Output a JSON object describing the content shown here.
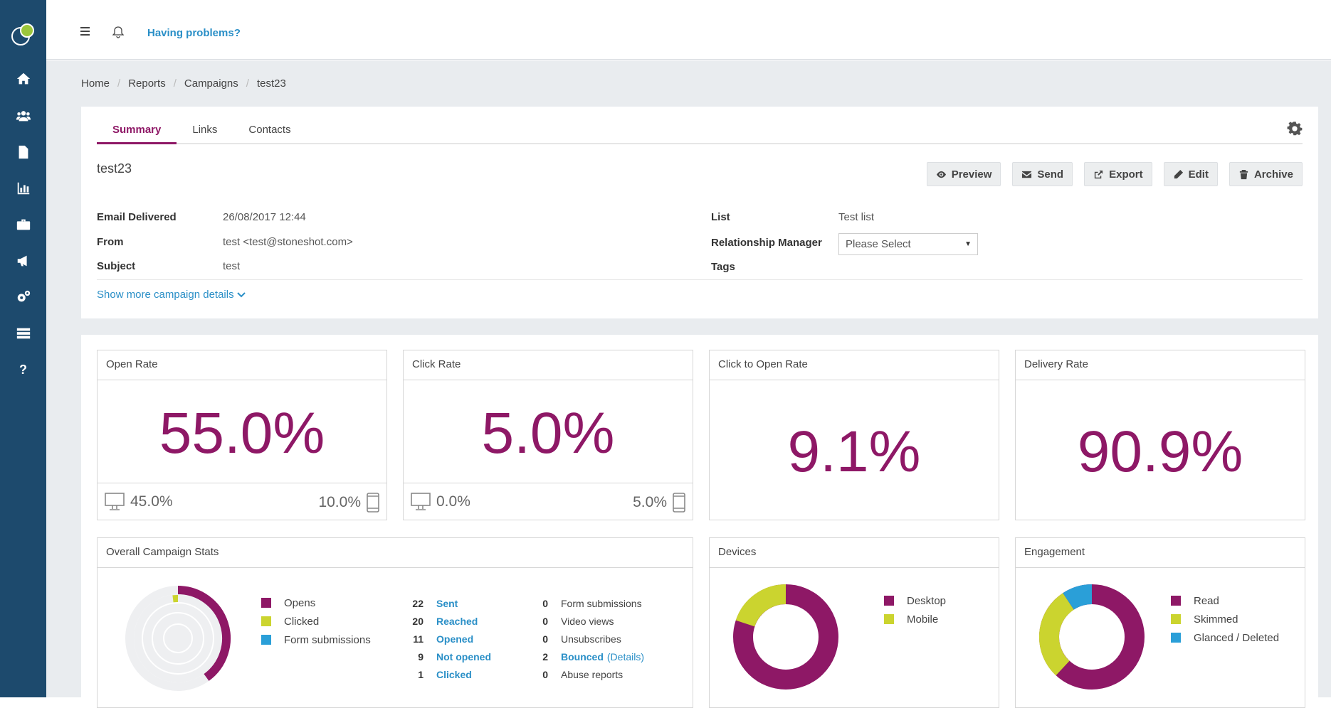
{
  "topbar": {
    "problems_link": "Having problems?"
  },
  "sidebar": {
    "items": [
      {
        "icon": "home-icon"
      },
      {
        "icon": "users-icon"
      },
      {
        "icon": "document-icon"
      },
      {
        "icon": "bar-chart-icon"
      },
      {
        "icon": "briefcase-icon"
      },
      {
        "icon": "megaphone-icon"
      },
      {
        "icon": "cogs-icon"
      },
      {
        "icon": "server-icon"
      },
      {
        "icon": "help-icon"
      }
    ]
  },
  "breadcrumb": [
    "Home",
    "Reports",
    "Campaigns",
    "test23"
  ],
  "tabs": [
    "Summary",
    "Links",
    "Contacts"
  ],
  "campaign": {
    "name": "test23",
    "actions": [
      "Preview",
      "Send",
      "Export",
      "Edit",
      "Archive"
    ],
    "email_delivered_label": "Email Delivered",
    "email_delivered_value": "26/08/2017 12:44",
    "from_label": "From",
    "from_value": "test <test@stoneshot.com>",
    "subject_label": "Subject",
    "subject_value": "test",
    "list_label": "List",
    "list_value": "Test list",
    "rm_label": "Relationship Manager",
    "rm_value": "Please Select",
    "tags_label": "Tags",
    "more_link": "Show more campaign details"
  },
  "metrics": {
    "open_rate": {
      "title": "Open Rate",
      "value": "55.0%",
      "desktop": "45.0%",
      "mobile": "10.0%"
    },
    "click_rate": {
      "title": "Click Rate",
      "value": "5.0%",
      "desktop": "0.0%",
      "mobile": "5.0%"
    },
    "cto_rate": {
      "title": "Click to Open Rate",
      "value": "9.1%"
    },
    "delivery_rate": {
      "title": "Delivery Rate",
      "value": "90.9%"
    }
  },
  "overall": {
    "title": "Overall Campaign Stats",
    "legend": [
      {
        "label": "Opens",
        "color": "#8e1866"
      },
      {
        "label": "Clicked",
        "color": "#cbd42f"
      },
      {
        "label": "Form submissions",
        "color": "#2a9fd8"
      }
    ],
    "stats_left": [
      {
        "num": "22",
        "label": "Sent"
      },
      {
        "num": "20",
        "label": "Reached"
      },
      {
        "num": "11",
        "label": "Opened"
      },
      {
        "num": "9",
        "label": "Not opened"
      },
      {
        "num": "1",
        "label": "Clicked"
      }
    ],
    "stats_right": [
      {
        "num": "0",
        "label": "Form submissions"
      },
      {
        "num": "0",
        "label": "Video views"
      },
      {
        "num": "0",
        "label": "Unsubscribes"
      },
      {
        "num": "2",
        "label": "Bounced",
        "extra": "(Details)"
      },
      {
        "num": "0",
        "label": "Abuse reports"
      }
    ]
  },
  "devices": {
    "title": "Devices",
    "legend": [
      {
        "label": "Desktop",
        "color": "#8e1866"
      },
      {
        "label": "Mobile",
        "color": "#cbd42f"
      }
    ]
  },
  "engagement": {
    "title": "Engagement",
    "legend": [
      {
        "label": "Read",
        "color": "#8e1866"
      },
      {
        "label": "Skimmed",
        "color": "#cbd42f"
      },
      {
        "label": "Glanced / Deleted",
        "color": "#2a9fd8"
      }
    ]
  }
}
